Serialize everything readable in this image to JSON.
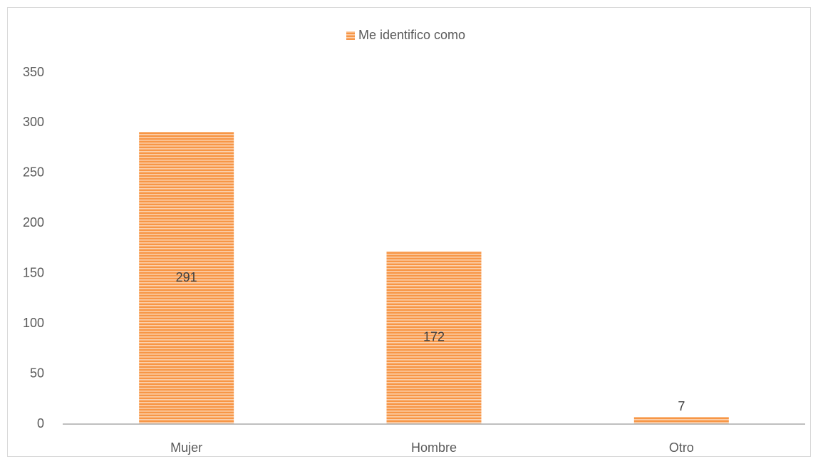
{
  "chart_data": {
    "type": "bar",
    "categories": [
      "Mujer",
      "Hombre",
      "Otro"
    ],
    "series": [
      {
        "name": "Me identifico como",
        "color": "#f79646",
        "values": [
          291,
          172,
          7
        ]
      }
    ],
    "ylim": [
      0,
      350
    ],
    "yticks": [
      0,
      50,
      100,
      150,
      200,
      250,
      300,
      350
    ],
    "grid": false,
    "legend": "top"
  }
}
